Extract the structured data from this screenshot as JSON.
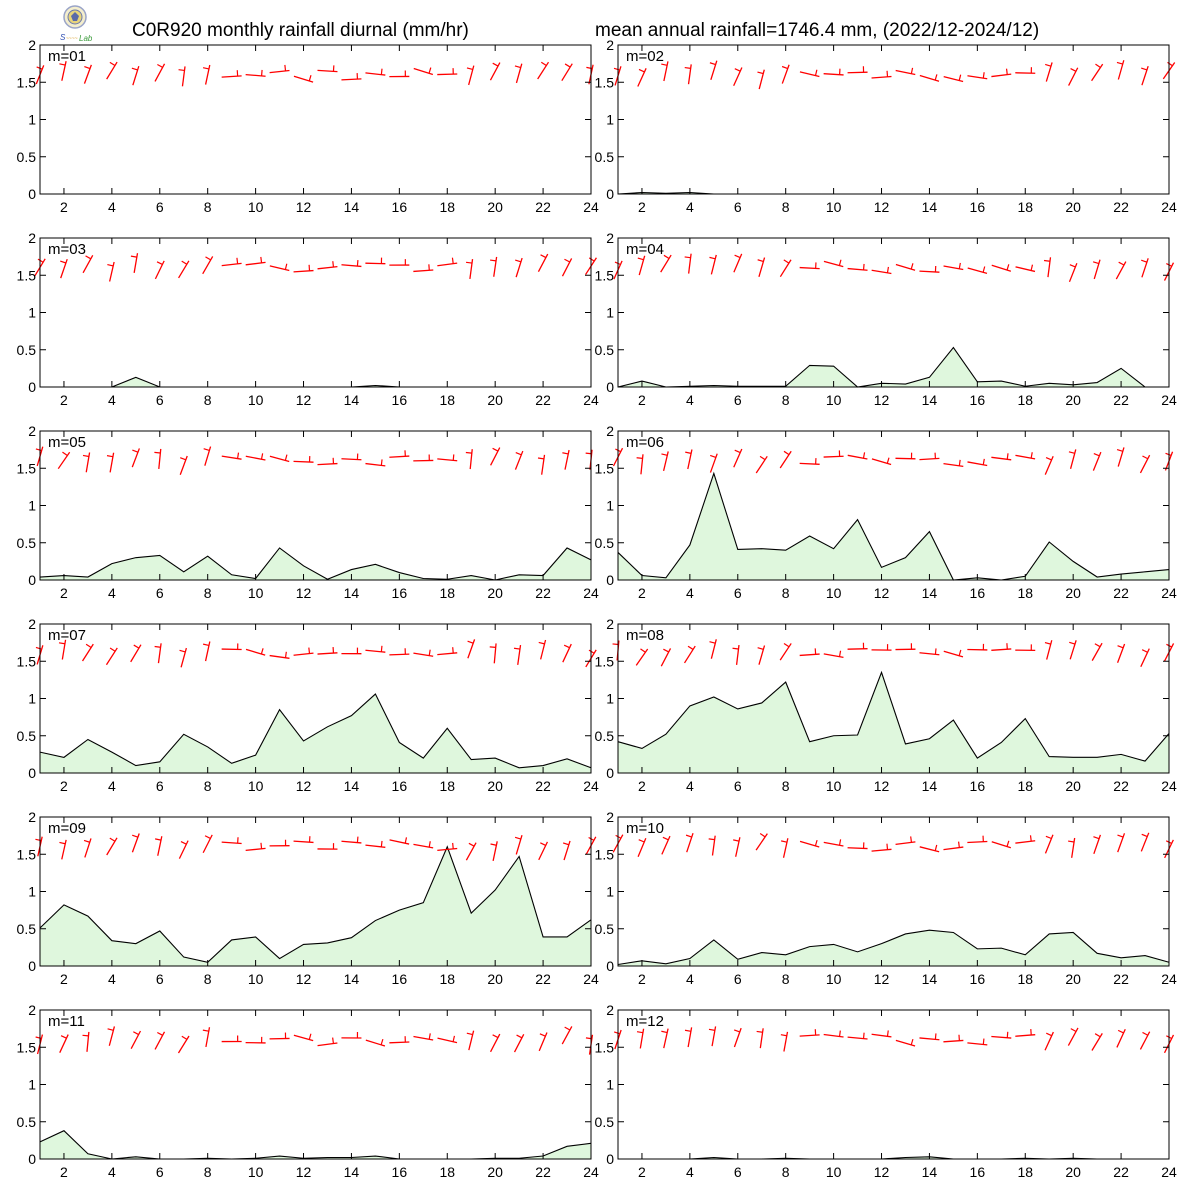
{
  "header": {
    "title_left": "C0R920 monthly rainfall diurnal (mm/hr)",
    "title_right": "mean annual rainfall=1746.4 mm, (2022/12-2024/12)",
    "logo_text": "Lab"
  },
  "colors": {
    "fill": "#dff7dd",
    "line": "#000000",
    "wind": "#ff0000"
  },
  "chart_data": {
    "type": "area",
    "x": [
      1,
      2,
      3,
      4,
      5,
      6,
      7,
      8,
      9,
      10,
      11,
      12,
      13,
      14,
      15,
      16,
      17,
      18,
      19,
      20,
      21,
      22,
      23,
      24
    ],
    "xticks": [
      "2",
      "4",
      "6",
      "8",
      "10",
      "12",
      "14",
      "16",
      "18",
      "20",
      "22",
      "24"
    ],
    "yticks": [
      "0",
      "0.5",
      "1",
      "1.5",
      "2"
    ],
    "ylim": [
      0,
      2
    ],
    "xlim": [
      1,
      24
    ],
    "panels": [
      {
        "label": "m=01",
        "values": [
          0,
          0,
          0,
          0,
          0,
          0,
          0,
          0,
          0,
          0,
          0,
          0,
          0,
          0,
          0,
          0,
          0,
          0,
          0,
          0,
          0,
          0,
          0,
          0
        ]
      },
      {
        "label": "m=02",
        "values": [
          0,
          0.02,
          0.01,
          0.02,
          0,
          0,
          0,
          0,
          0,
          0,
          0,
          0,
          0,
          0,
          0,
          0,
          0,
          0,
          0,
          0,
          0,
          0,
          0,
          0
        ]
      },
      {
        "label": "m=03",
        "values": [
          0,
          0,
          0,
          0,
          0.13,
          0,
          0,
          0,
          0,
          0,
          0,
          0,
          0,
          0,
          0.02,
          0,
          0,
          0,
          0,
          0,
          0,
          0,
          0,
          0
        ]
      },
      {
        "label": "m=04",
        "values": [
          0,
          0.08,
          0,
          0.01,
          0.02,
          0.01,
          0.01,
          0.01,
          0.29,
          0.28,
          0,
          0.05,
          0.04,
          0.13,
          0.53,
          0.07,
          0.08,
          0.01,
          0.05,
          0.03,
          0.06,
          0.25,
          0,
          0
        ]
      },
      {
        "label": "m=05",
        "values": [
          0.04,
          0.06,
          0.04,
          0.22,
          0.3,
          0.33,
          0.11,
          0.32,
          0.07,
          0.02,
          0.43,
          0.19,
          0.01,
          0.14,
          0.21,
          0.1,
          0.02,
          0.01,
          0.06,
          0,
          0.07,
          0.06,
          0.43,
          0.27
        ]
      },
      {
        "label": "m=06",
        "values": [
          0.37,
          0.06,
          0.03,
          0.47,
          1.43,
          0.41,
          0.42,
          0.4,
          0.59,
          0.42,
          0.81,
          0.17,
          0.3,
          0.65,
          0,
          0.03,
          0,
          0.05,
          0.51,
          0.25,
          0.04,
          0.08,
          0.11,
          0.14
        ]
      },
      {
        "label": "m=07",
        "values": [
          0.28,
          0.21,
          0.45,
          0.28,
          0.1,
          0.15,
          0.52,
          0.35,
          0.13,
          0.24,
          0.85,
          0.43,
          0.62,
          0.77,
          1.06,
          0.41,
          0.2,
          0.6,
          0.18,
          0.2,
          0.07,
          0.1,
          0.19,
          0.07
        ]
      },
      {
        "label": "m=08",
        "values": [
          0.42,
          0.33,
          0.52,
          0.9,
          1.02,
          0.86,
          0.94,
          1.22,
          0.42,
          0.5,
          0.51,
          1.35,
          0.39,
          0.46,
          0.71,
          0.2,
          0.41,
          0.73,
          0.22,
          0.21,
          0.21,
          0.25,
          0.16,
          0.53
        ]
      },
      {
        "label": "m=09",
        "values": [
          0.51,
          0.82,
          0.67,
          0.34,
          0.3,
          0.47,
          0.12,
          0.05,
          0.35,
          0.39,
          0.1,
          0.29,
          0.31,
          0.38,
          0.61,
          0.75,
          0.85,
          1.6,
          0.71,
          1.02,
          1.47,
          0.39,
          0.39,
          0.62
        ]
      },
      {
        "label": "m=10",
        "values": [
          0.02,
          0.07,
          0.03,
          0.1,
          0.35,
          0.09,
          0.18,
          0.15,
          0.26,
          0.29,
          0.19,
          0.3,
          0.43,
          0.48,
          0.45,
          0.23,
          0.24,
          0.15,
          0.43,
          0.45,
          0.17,
          0.11,
          0.14,
          0.05
        ]
      },
      {
        "label": "m=11",
        "values": [
          0.23,
          0.38,
          0.07,
          0,
          0.03,
          0,
          0,
          0.01,
          0,
          0.01,
          0.04,
          0.01,
          0.02,
          0.02,
          0.04,
          0,
          0,
          0,
          0,
          0.01,
          0.01,
          0.04,
          0.17,
          0.21
        ]
      },
      {
        "label": "m=12",
        "values": [
          0,
          0,
          0,
          0,
          0.02,
          0,
          0,
          0.01,
          0,
          0,
          0,
          0,
          0.02,
          0.03,
          0,
          0,
          0,
          0.01,
          0,
          0.01,
          0,
          0,
          0,
          0
        ]
      }
    ]
  }
}
